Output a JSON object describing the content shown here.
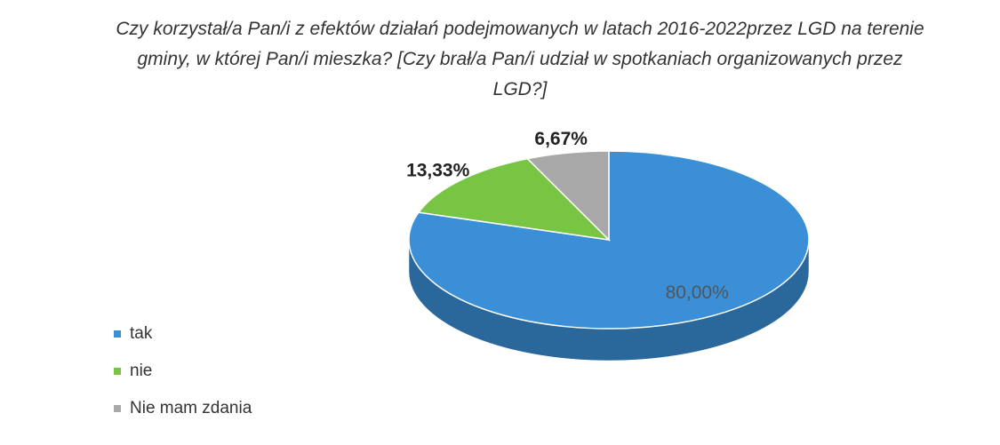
{
  "chart_data": {
    "type": "pie",
    "title": "Czy korzystał/a Pan/i z efektów działań podejmowanych w latach 2016-2022przez LGD na terenie gminy, w której Pan/i mieszka? [Czy brał/a Pan/i udział w spotkaniach organizowanych przez LGD?]",
    "categories": [
      "tak",
      "nie",
      "Nie mam zdania"
    ],
    "values": [
      80,
      13.33,
      6.67
    ],
    "value_labels": [
      "80,00%",
      "13,33%",
      "6,67%"
    ],
    "colors": [
      "#3a8fd6",
      "#78c443",
      "#a8a8a8"
    ],
    "legend": "left"
  }
}
